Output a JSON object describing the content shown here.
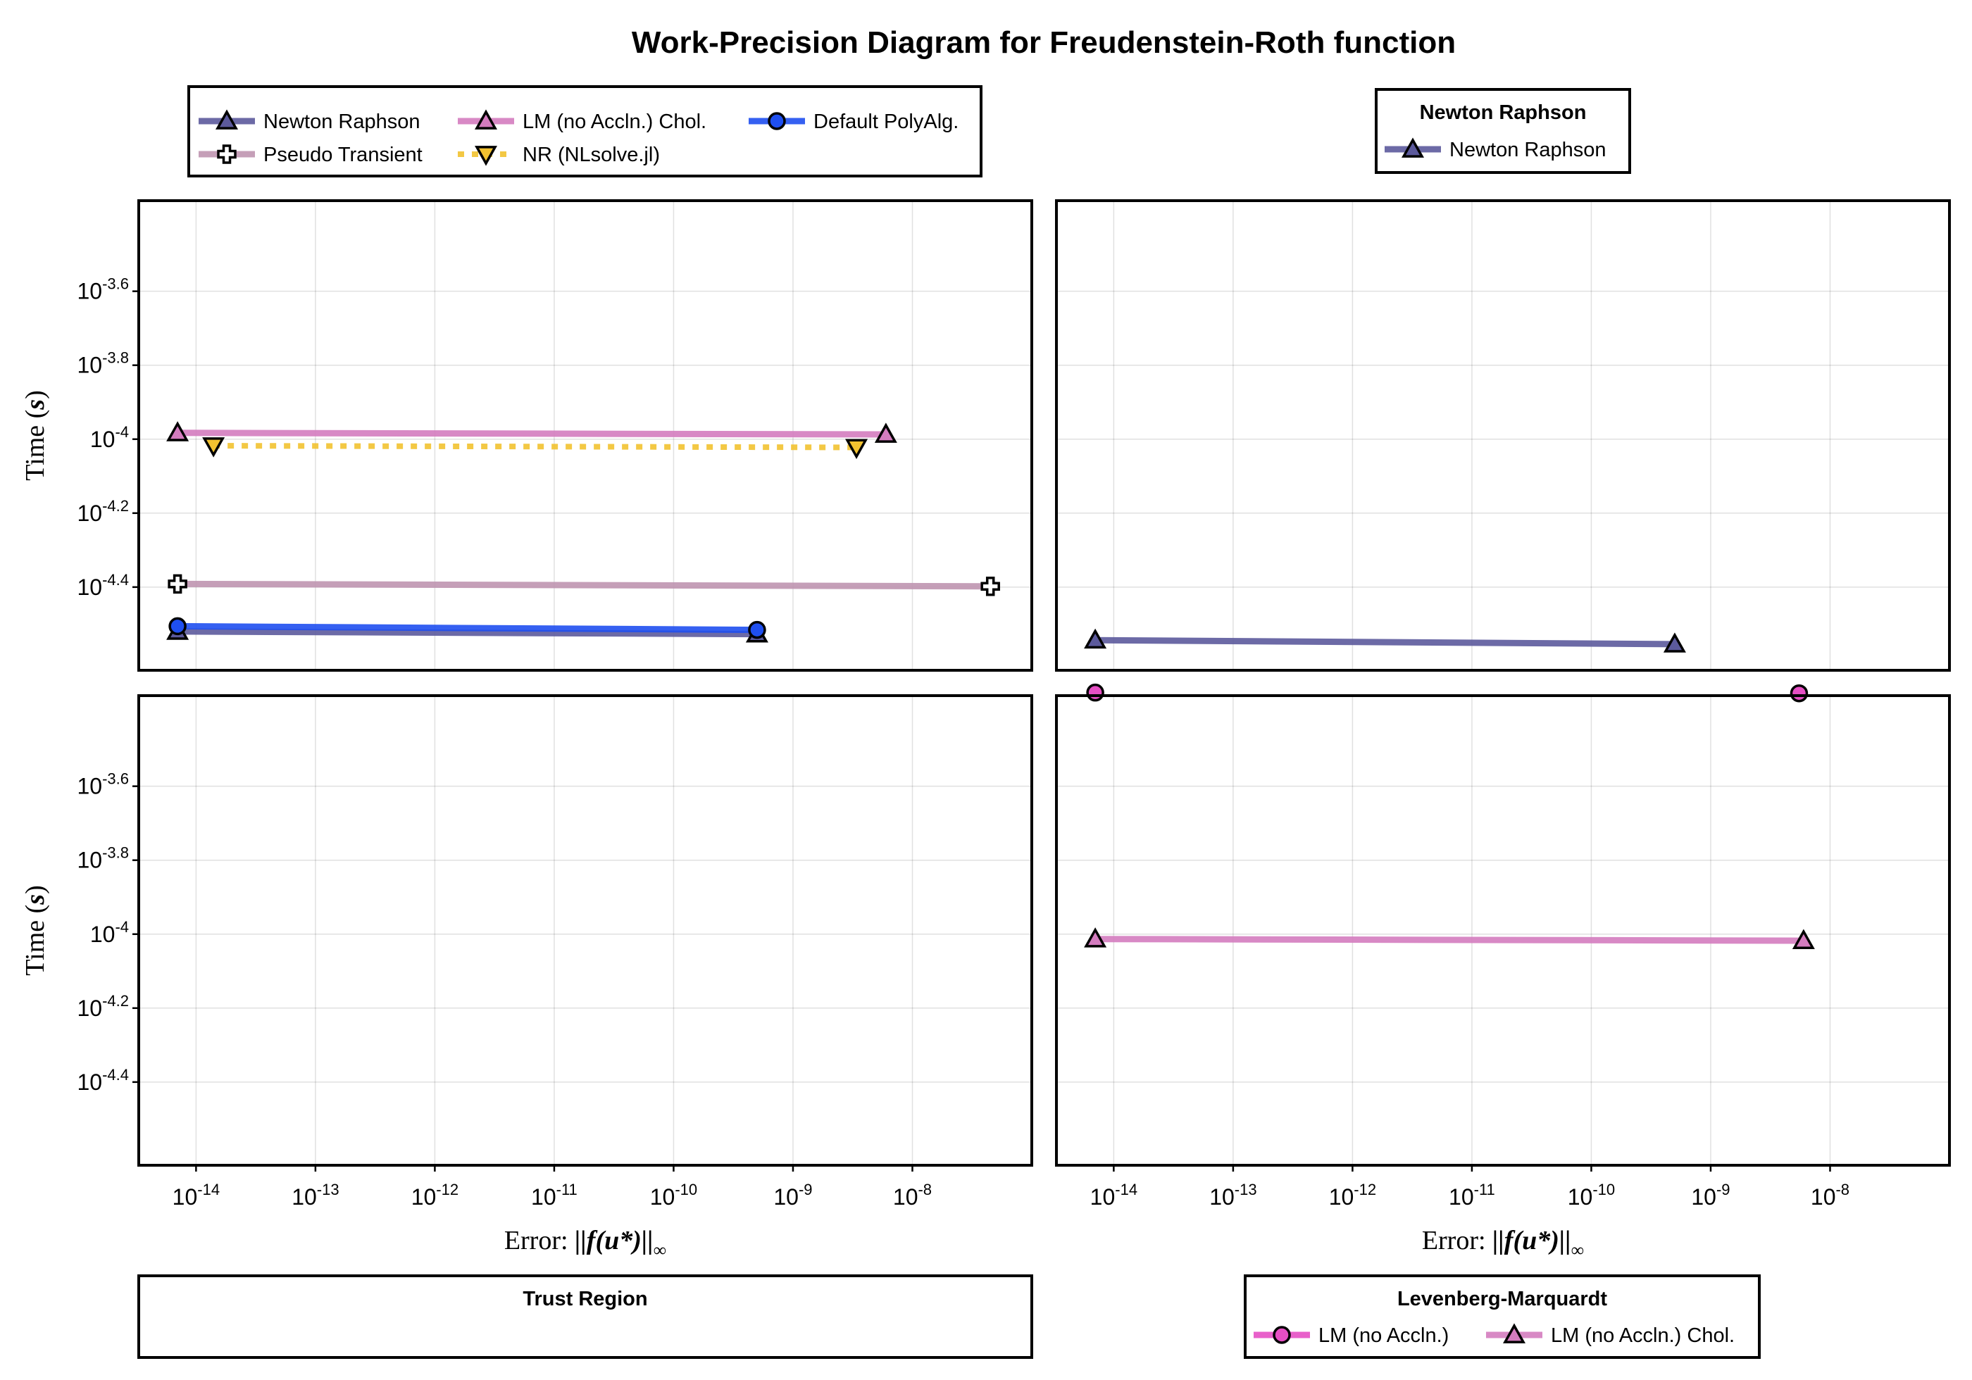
{
  "figure": {
    "title": "Work-Precision Diagram for Freudenstein-Roth function"
  },
  "legend_top_left": {
    "entries": [
      {
        "label": "Newton Raphson",
        "color": "#5c5a9c",
        "marker": "triangle-up",
        "dash": "solid"
      },
      {
        "label": "LM (no Accln.) Chol.",
        "color": "#d47cbf",
        "marker": "triangle-up",
        "dash": "solid"
      },
      {
        "label": "Default PolyAlg.",
        "color": "#1f4ff0",
        "marker": "circle",
        "dash": "solid"
      },
      {
        "label": "Pseudo Transient",
        "color": "#bf95b0",
        "marker": "cross",
        "dash": "solid"
      },
      {
        "label": "NR (NLsolve.jl)",
        "color": "#f2c230",
        "marker": "triangle-down",
        "dash": "dot"
      }
    ]
  },
  "legend_top_right": {
    "title": "Newton Raphson",
    "entries": [
      {
        "label": "Newton Raphson",
        "color": "#5c5a9c",
        "marker": "triangle-up",
        "dash": "solid"
      }
    ]
  },
  "legend_bottom_left": {
    "title": "Trust Region",
    "entries": []
  },
  "legend_bottom_right": {
    "title": "Levenberg-Marquardt",
    "entries": [
      {
        "label": "LM (no Accln.)",
        "color": "#e64fc4",
        "marker": "circle",
        "dash": "solid"
      },
      {
        "label": "LM (no Accln.) Chol.",
        "color": "#d47cbf",
        "marker": "triangle-up",
        "dash": "solid"
      }
    ]
  },
  "axes": {
    "ylabel_word": "Time",
    "ylabel_unit": "s",
    "xlabel_word": "Error:",
    "xlabel_math": "||f(u*)||",
    "xlabel_sub": "∞",
    "x_ticks": [
      {
        "base": "10",
        "exp": "-14",
        "value": -14
      },
      {
        "base": "10",
        "exp": "-13",
        "value": -13
      },
      {
        "base": "10",
        "exp": "-12",
        "value": -12
      },
      {
        "base": "10",
        "exp": "-11",
        "value": -11
      },
      {
        "base": "10",
        "exp": "-10",
        "value": -10
      },
      {
        "base": "10",
        "exp": "-9",
        "value": -9
      },
      {
        "base": "10",
        "exp": "-8",
        "value": -8
      }
    ],
    "y_ticks": [
      {
        "base": "10",
        "exp": "-3.6",
        "value": -3.6
      },
      {
        "base": "10",
        "exp": "-3.8",
        "value": -3.8
      },
      {
        "base": "10",
        "exp": "-4",
        "value": -4.0
      },
      {
        "base": "10",
        "exp": "-4.2",
        "value": -4.2
      },
      {
        "base": "10",
        "exp": "-4.4",
        "value": -4.4
      }
    ]
  },
  "chart_data": [
    {
      "type": "line",
      "panel": "top-left",
      "xscale": "log",
      "yscale": "log",
      "xlim_log10": [
        -14.48,
        -7.0
      ],
      "ylim_log10": [
        -4.625,
        -3.355
      ],
      "grid": true,
      "series": [
        {
          "name": "LM (no Accln.) Chol.",
          "color": "#d47cbf",
          "marker": "triangle-up",
          "dash": "solid",
          "points": [
            {
              "x": 7e-15,
              "y": 0.000104
            },
            {
              "x": 6e-09,
              "y": 0.000103
            }
          ]
        },
        {
          "name": "NR (NLsolve.jl)",
          "color": "#f2c230",
          "marker": "triangle-down",
          "dash": "dot",
          "points": [
            {
              "x": 1.4e-14,
              "y": 9.6e-05
            },
            {
              "x": 3.4e-09,
              "y": 9.5e-05
            }
          ]
        },
        {
          "name": "Pseudo Transient",
          "color": "#bf95b0",
          "marker": "cross",
          "dash": "solid",
          "points": [
            {
              "x": 7e-15,
              "y": 4.06e-05
            },
            {
              "x": 4.5e-08,
              "y": 4e-05
            }
          ]
        },
        {
          "name": "Newton Raphson",
          "color": "#5c5a9c",
          "marker": "triangle-up",
          "dash": "solid",
          "points": [
            {
              "x": 7e-15,
              "y": 3.02e-05
            },
            {
              "x": 5e-10,
              "y": 2.97e-05
            }
          ]
        },
        {
          "name": "Default PolyAlg.",
          "color": "#1f4ff0",
          "marker": "circle",
          "dash": "solid",
          "points": [
            {
              "x": 7e-15,
              "y": 3.12e-05
            },
            {
              "x": 5e-10,
              "y": 3.05e-05
            }
          ]
        }
      ]
    },
    {
      "type": "line",
      "panel": "top-right",
      "xscale": "log",
      "yscale": "log",
      "xlim_log10": [
        -14.48,
        -7.0
      ],
      "ylim_log10": [
        -4.625,
        -3.355
      ],
      "grid": true,
      "series": [
        {
          "name": "Newton Raphson",
          "color": "#5c5a9c",
          "marker": "triangle-up",
          "dash": "solid",
          "points": [
            {
              "x": 7e-15,
              "y": 2.86e-05
            },
            {
              "x": 5e-10,
              "y": 2.79e-05
            }
          ]
        }
      ]
    },
    {
      "type": "line",
      "panel": "bottom-left",
      "xscale": "log",
      "yscale": "log",
      "xlim_log10": [
        -14.48,
        -7.0
      ],
      "ylim_log10": [
        -4.625,
        -3.355
      ],
      "grid": true,
      "series": []
    },
    {
      "type": "line",
      "panel": "bottom-right",
      "xscale": "log",
      "yscale": "log",
      "xlim_log10": [
        -14.48,
        -7.0
      ],
      "ylim_log10": [
        -4.625,
        -3.355
      ],
      "grid": true,
      "series": [
        {
          "name": "LM (no Accln.)",
          "color": "#e64fc4",
          "marker": "circle",
          "dash": "solid",
          "points": [
            {
              "x": 7e-15,
              "y": 0.00045
            },
            {
              "x": 5.5e-09,
              "y": 0.000448
            }
          ]
        },
        {
          "name": "LM (no Accln.) Chol.",
          "color": "#d47cbf",
          "marker": "triangle-up",
          "dash": "solid",
          "points": [
            {
              "x": 7e-15,
              "y": 9.7e-05
            },
            {
              "x": 6e-09,
              "y": 9.6e-05
            }
          ]
        }
      ]
    }
  ]
}
